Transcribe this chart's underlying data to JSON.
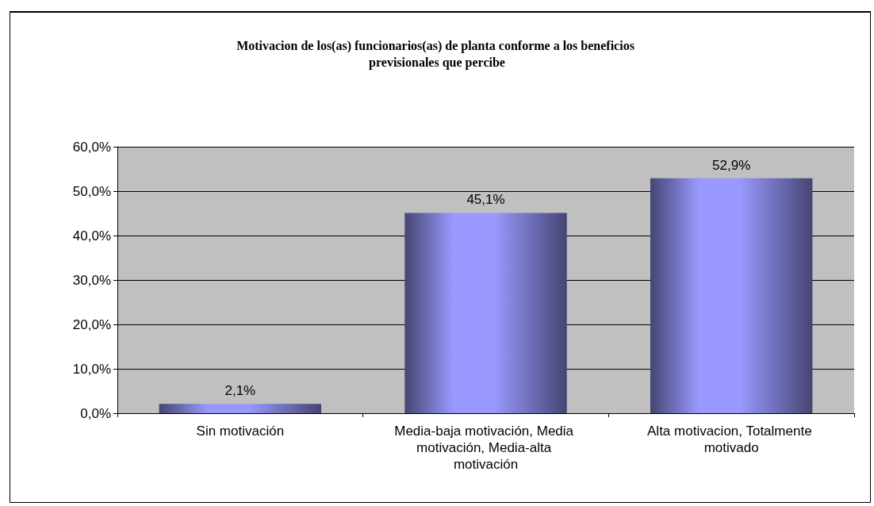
{
  "chart_data": {
    "type": "bar",
    "title": "Motivacion de los(as) funcionarios(as) de planta conforme a los beneficios previsionales que percibe",
    "categories": [
      "Sin motivación",
      "Media-baja motivación, Media motivación, Media-alta motivación",
      "Alta motivacion, Totalmente motivado"
    ],
    "values": [
      2.1,
      45.1,
      52.9
    ],
    "color": "#9999ff",
    "value_labels": [
      "2,1%",
      "45,1%",
      "52,9%"
    ],
    "ylim": [
      0,
      60
    ],
    "yticks": [
      {
        "value": 0,
        "label": "0,0%"
      },
      {
        "value": 10,
        "label": "10,0%"
      },
      {
        "value": 20,
        "label": "20,0%"
      },
      {
        "value": 30,
        "label": "30,0%"
      },
      {
        "value": 40,
        "label": "40,0%"
      },
      {
        "value": 50,
        "label": "50,0%"
      },
      {
        "value": 60,
        "label": "60,0%"
      }
    ],
    "grid": "y"
  }
}
